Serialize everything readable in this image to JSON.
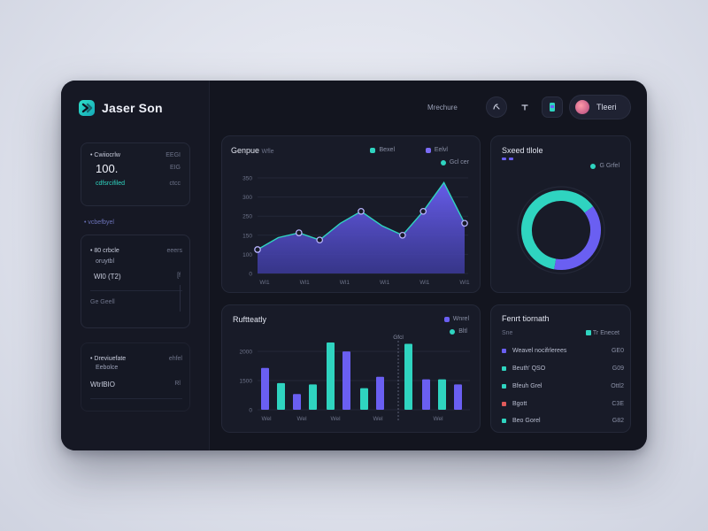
{
  "brand": {
    "name": "Jaser Son"
  },
  "topbar": {
    "nav_text": "Mrechure",
    "user_name": "Tleeri"
  },
  "sidebar": {
    "card1": {
      "title": "Cwiiocrlw",
      "right1": "EEGI",
      "value": "100.",
      "right2": "EIG",
      "sub": "cdfsrcifiled",
      "right3": "ctcc"
    },
    "section_label": "vcbefbyel",
    "card2": {
      "title": "80 crbcle",
      "right1": "eeers",
      "sub": "oruytbl",
      "row1": "Wl0 (T2)",
      "row1r": "[f",
      "row2": "Ge Geell"
    },
    "card3": {
      "title": "Dreviuefate",
      "right1": "ehfel",
      "sub": "Eebolce",
      "row1": "WtrlBIO",
      "row1r": "Rl"
    }
  },
  "area_panel": {
    "title": "Genpue",
    "title_suffix": "Wfle",
    "legend": [
      {
        "label": "Bexel",
        "color": "#2fd4c0"
      },
      {
        "label": "Eelvl",
        "color": "#7b6cf6"
      }
    ],
    "legend2": "Gcl cer",
    "y_ticks": [
      "350",
      "300",
      "250",
      "150",
      "100",
      "0"
    ],
    "x_ticks": [
      "Wl1",
      "Wl1",
      "Wl1",
      "Wl1",
      "Wl1",
      "Wl1"
    ]
  },
  "donut_panel": {
    "title": "Sxeed tllole",
    "legend": "G Grfel",
    "segments": [
      {
        "value": 62,
        "color": "#2fd4c0"
      },
      {
        "value": 38,
        "color": "#6a5ff2"
      }
    ]
  },
  "bar_panel": {
    "title": "Ruftteatly",
    "legend": [
      {
        "label": "Wnrel",
        "color": "#6a5ff2"
      },
      {
        "label": "Bltl",
        "color": "#2fd4c0"
      }
    ],
    "annotation": "Gfcl",
    "y_ticks": [
      "2000",
      "1500",
      "0"
    ],
    "x_ticks": [
      "Wel",
      "Wel",
      "Wel",
      "Wel",
      "Wel"
    ]
  },
  "list_panel": {
    "title": "Fenrt tiornath",
    "header_left": "Sne",
    "header_right": "Tr Enecet",
    "rows": [
      {
        "label": "Weavel nocifrlerees",
        "value": "GE0",
        "color": "#6a5ff2"
      },
      {
        "label": "Beuth' QSO",
        "value": "G09",
        "color": "#2fd4c0"
      },
      {
        "label": "Bfeuh Grel",
        "value": "Ottl2",
        "color": "#2fd4c0"
      },
      {
        "label": "Bgott",
        "value": "C3E",
        "color": "#e05a5a"
      },
      {
        "label": "Beo Gorel",
        "value": "G82",
        "color": "#2fd4c0"
      }
    ]
  },
  "chart_data": [
    {
      "type": "area",
      "title": "Genpue",
      "x": [
        0,
        1,
        2,
        3,
        4,
        5,
        6,
        7,
        8,
        9,
        10
      ],
      "values": [
        100,
        150,
        170,
        140,
        210,
        260,
        200,
        160,
        260,
        380,
        210
      ],
      "ylim": [
        0,
        400
      ],
      "colors": {
        "line": "#2fd4c0",
        "fill_top": "#6a5ff2",
        "fill_bottom": "#3c3a9a"
      }
    },
    {
      "type": "pie",
      "title": "Sxeed tllole",
      "values": [
        62,
        38
      ]
    },
    {
      "type": "bar",
      "title": "Ruftteatly",
      "series": [
        {
          "name": "Wnrel",
          "values": [
            1600,
            1050,
            1000,
            2650,
            860,
            2650,
            1200
          ]
        },
        {
          "name": "Bltl",
          "values": [
            700,
            900,
            2700,
            2300,
            1250,
            1050,
            1350
          ]
        }
      ],
      "bar_colors": [
        "#6a5ff2",
        "#2fd4c0",
        "#6a5ff2",
        "#2fd4c0",
        "#2fd4c0",
        "#6a5ff2",
        "#2fd4c0",
        "#6a5ff2",
        "#2fd4c0",
        "#6a5ff2",
        "#2fd4c0",
        "#6a5ff2",
        "#2fd4c0",
        "#6a5ff2"
      ],
      "bar_values": [
        1650,
        1050,
        620,
        1000,
        2650,
        2300,
        850,
        1300,
        2600,
        1200,
        1200,
        1000,
        0,
        0
      ],
      "ylim": [
        0,
        3000
      ]
    }
  ]
}
